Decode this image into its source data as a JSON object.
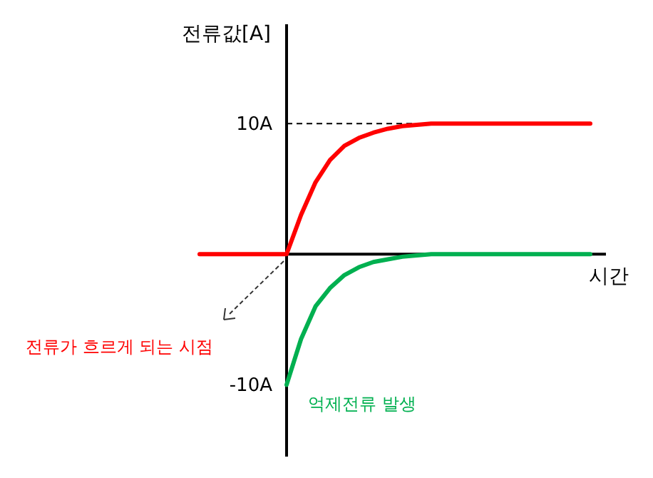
{
  "chart_data": {
    "type": "line",
    "xlabel": "시간",
    "ylabel": "전류값[A]",
    "categories": [
      null,
      null,
      null,
      null,
      null,
      null,
      null,
      null,
      null,
      null,
      null,
      null,
      null,
      null,
      null,
      null,
      null,
      null,
      null,
      null,
      null,
      null
    ],
    "series": [
      {
        "color": "#00b050",
        "values": [
          -10,
          -6.5,
          -4.0,
          -2.6,
          -1.6,
          -1.0,
          -0.6,
          -0.4,
          -0.2,
          -0.1,
          0,
          0,
          0,
          0,
          0,
          0,
          0,
          0,
          0,
          0,
          0,
          0
        ]
      },
      {
        "color": "#ff0000",
        "values": [
          0,
          3.0,
          5.5,
          7.2,
          8.3,
          8.9,
          9.3,
          9.6,
          9.8,
          9.9,
          10,
          10,
          10,
          10,
          10,
          10,
          10,
          10,
          10,
          10,
          10,
          10
        ]
      }
    ],
    "ylim": [
      -15.5,
      17.6
    ],
    "yticks": [
      {
        "value": 10,
        "label": "10A"
      },
      {
        "value": -10,
        "label": "-10A"
      }
    ],
    "ref_lines": [
      {
        "axis": "y",
        "value": 10,
        "line_style": "dashed",
        "color": "#000000"
      }
    ],
    "grid": false,
    "marker": "none",
    "line_style": "solid",
    "annotations": [
      "전류가 흐르게 되는 시점",
      "억제전류 발생"
    ]
  }
}
